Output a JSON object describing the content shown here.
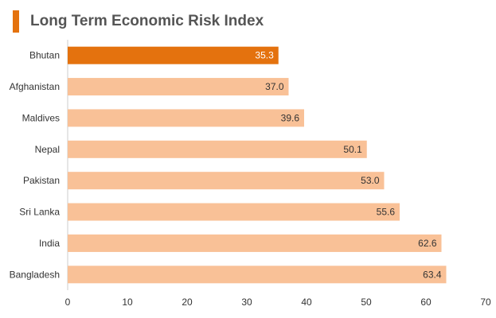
{
  "chart_data": {
    "type": "bar",
    "orientation": "horizontal",
    "title": "Long Term Economic Risk Index",
    "categories": [
      "Bhutan",
      "Afghanistan",
      "Maldives",
      "Nepal",
      "Pakistan",
      "Sri Lanka",
      "India",
      "Bangladesh"
    ],
    "values": [
      35.3,
      37.0,
      39.6,
      50.1,
      53.0,
      55.6,
      62.6,
      63.4
    ],
    "value_labels": [
      "35.3",
      "37.0",
      "39.6",
      "50.1",
      "53.0",
      "55.6",
      "62.6",
      "63.4"
    ],
    "xlim": [
      0,
      70
    ],
    "xticks": [
      0,
      10,
      20,
      30,
      40,
      50,
      60,
      70
    ],
    "xlabel": "",
    "ylabel": "",
    "grid": false,
    "legend": "none",
    "highlight_index": 0,
    "colors": {
      "bar": "#f9c197",
      "highlight_bar": "#e4720e",
      "title_accent": "#e4720e",
      "axis": "#cccccc"
    }
  }
}
